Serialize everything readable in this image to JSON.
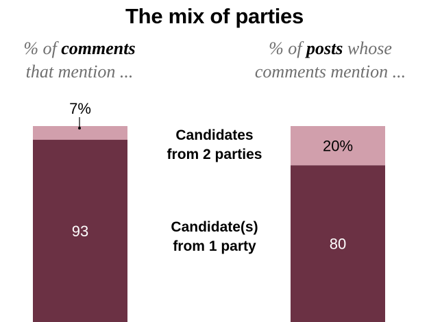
{
  "title": "The mix of parties",
  "left_subtitle": {
    "pre": "% of ",
    "emph": "comments",
    "post": "that mention ..."
  },
  "right_subtitle": {
    "pre": "% of ",
    "emph": "posts",
    "mid": " whose",
    "post": "comments mention ..."
  },
  "mid_labels": {
    "two_parties_line1": "Candidates",
    "two_parties_line2": "from 2 parties",
    "one_party_line1": "Candidate(s)",
    "one_party_line2": "from 1 party"
  },
  "colors": {
    "one_party": "#6b3144",
    "two_parties": "#d19fac"
  },
  "chart_data": {
    "type": "bar",
    "stacked": true,
    "categories": [
      "% of comments that mention ...",
      "% of posts whose comments mention ..."
    ],
    "series": [
      {
        "name": "Candidate(s) from 1 party",
        "values": [
          93,
          80
        ],
        "labels": [
          "93",
          "80"
        ]
      },
      {
        "name": "Candidates from 2 parties",
        "values": [
          7,
          20
        ],
        "labels": [
          "7%",
          "20%"
        ]
      }
    ],
    "ylim": [
      0,
      100
    ]
  }
}
